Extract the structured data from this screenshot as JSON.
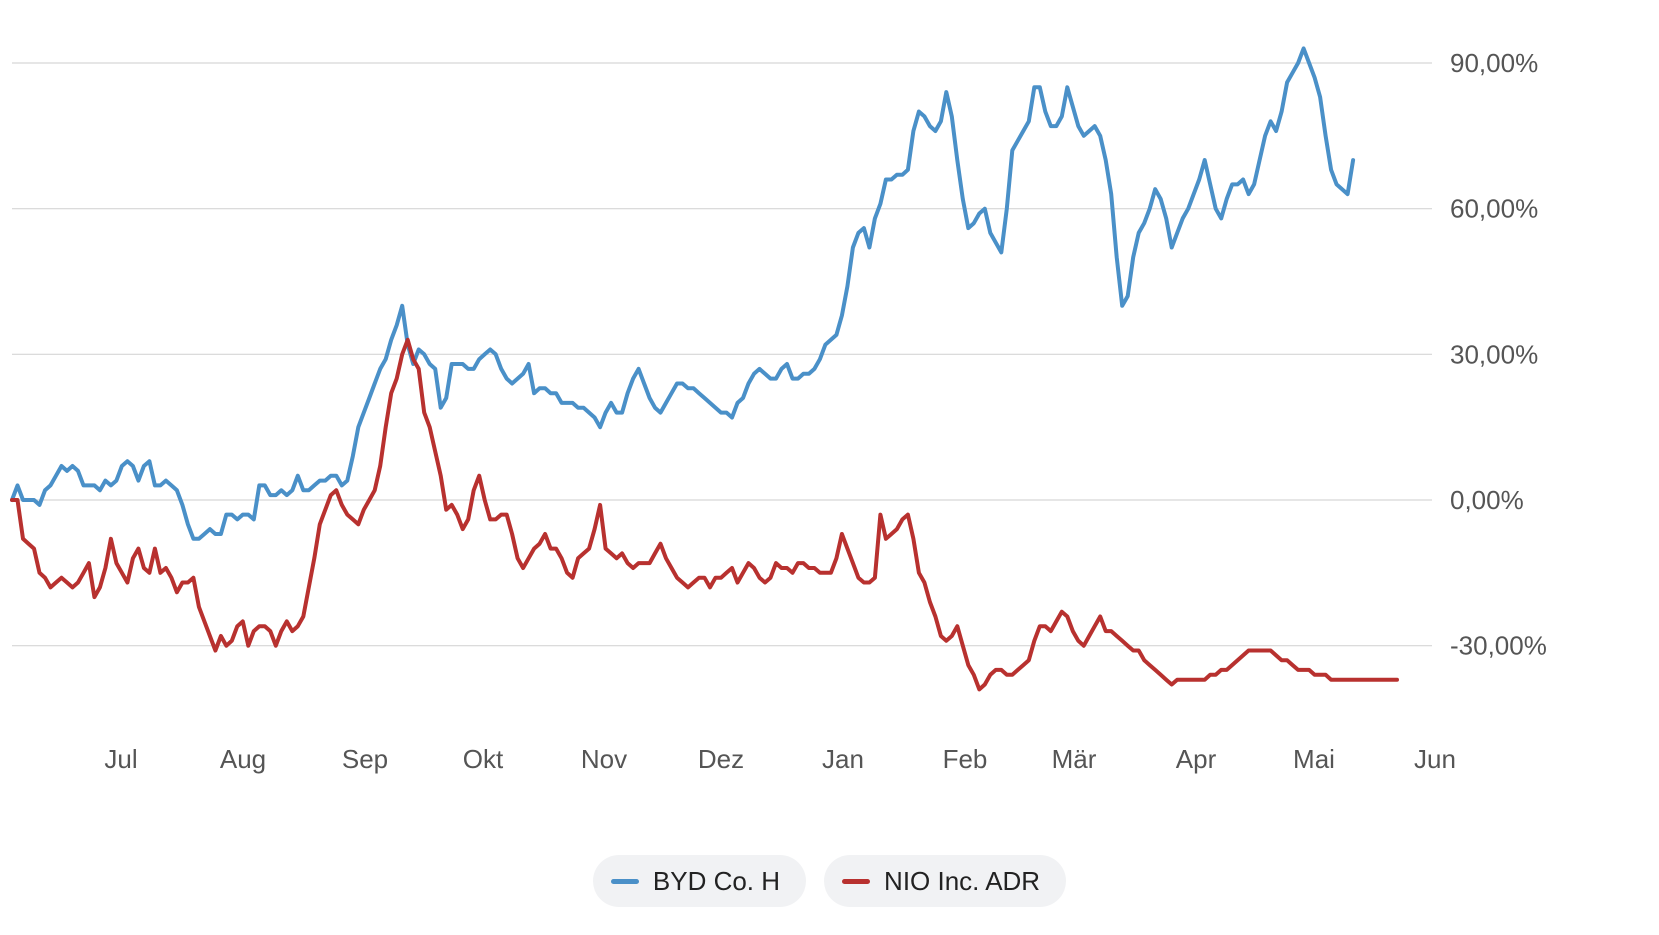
{
  "chart_data": {
    "type": "line",
    "y_axis_position": "right",
    "ylim": [
      -42,
      96
    ],
    "y_ticks": [
      {
        "value": 90,
        "label": "90,00%"
      },
      {
        "value": 60,
        "label": "60,00%"
      },
      {
        "value": 30,
        "label": "30,00%"
      },
      {
        "value": 0,
        "label": "0,00%"
      },
      {
        "value": -30,
        "label": "-30,00%"
      }
    ],
    "x_ticks": [
      {
        "index": 22,
        "label": "Jul"
      },
      {
        "index": 44,
        "label": "Aug"
      },
      {
        "index": 66,
        "label": "Sep"
      },
      {
        "index": 88,
        "label": "Okt"
      },
      {
        "index": 110,
        "label": "Nov"
      },
      {
        "index": 132,
        "label": "Dez"
      },
      {
        "index": 154,
        "label": "Jan"
      },
      {
        "index": 176,
        "label": "Feb"
      },
      {
        "index": 198,
        "label": "Mär"
      },
      {
        "index": 220,
        "label": "Apr"
      },
      {
        "index": 242,
        "label": "Mai"
      },
      {
        "index": 264,
        "label": "Jun"
      }
    ],
    "x_count": 261,
    "grid": true,
    "legend_position": "bottom-center",
    "series": [
      {
        "name": "BYD Co. H",
        "color": "#4a90c8",
        "values": [
          0,
          3,
          0,
          0,
          0,
          -1,
          2,
          3,
          5,
          7,
          6,
          7,
          6,
          3,
          3,
          3,
          2,
          4,
          3,
          4,
          7,
          8,
          7,
          4,
          7,
          8,
          3,
          3,
          4,
          3,
          2,
          -1,
          -5,
          -8,
          -8,
          -7,
          -6,
          -7,
          -7,
          -3,
          -3,
          -4,
          -3,
          -3,
          -4,
          3,
          3,
          1,
          1,
          2,
          1,
          2,
          5,
          2,
          2,
          3,
          4,
          4,
          5,
          5,
          3,
          4,
          9,
          15,
          18,
          21,
          24,
          27,
          29,
          33,
          36,
          40,
          32,
          28,
          31,
          30,
          28,
          27,
          19,
          21,
          28,
          28,
          28,
          27,
          27,
          29,
          30,
          31,
          30,
          27,
          25,
          24,
          25,
          26,
          28,
          22,
          23,
          23,
          22,
          22,
          20,
          20,
          20,
          19,
          19,
          18,
          17,
          15,
          18,
          20,
          18,
          18,
          22,
          25,
          27,
          24,
          21,
          19,
          18,
          20,
          22,
          24,
          24,
          23,
          23,
          22,
          21,
          20,
          19,
          18,
          18,
          17,
          20,
          21,
          24,
          26,
          27,
          26,
          25,
          25,
          27,
          28,
          25,
          25,
          26,
          26,
          27,
          29,
          32,
          33,
          34,
          38,
          44,
          52,
          55,
          56,
          52,
          58,
          61,
          66,
          66,
          67,
          67,
          68,
          76,
          80,
          79,
          77,
          76,
          78,
          84,
          79,
          70,
          62,
          56,
          57,
          59,
          60,
          55,
          53,
          51,
          60,
          72,
          74,
          76,
          78,
          85,
          85,
          80,
          77,
          77,
          79,
          85,
          81,
          77,
          75,
          76,
          77,
          75,
          70,
          63,
          50,
          40,
          42,
          50,
          55,
          57,
          60,
          64,
          62,
          58,
          52,
          55,
          58,
          60,
          63,
          66,
          70,
          65,
          60,
          58,
          62,
          65,
          65,
          66,
          63,
          65,
          70,
          75,
          78,
          76,
          80,
          86,
          88,
          90,
          93,
          90,
          87,
          83,
          75,
          68,
          65,
          64,
          63,
          70
        ]
      },
      {
        "name": "NIO Inc. ADR",
        "color": "#b8312f",
        "values": [
          0,
          0,
          -8,
          -9,
          -10,
          -15,
          -16,
          -18,
          -17,
          -16,
          -17,
          -18,
          -17,
          -15,
          -13,
          -20,
          -18,
          -14,
          -8,
          -13,
          -15,
          -17,
          -12,
          -10,
          -14,
          -15,
          -10,
          -15,
          -14,
          -16,
          -19,
          -17,
          -17,
          -16,
          -22,
          -25,
          -28,
          -31,
          -28,
          -30,
          -29,
          -26,
          -25,
          -30,
          -27,
          -26,
          -26,
          -27,
          -30,
          -27,
          -25,
          -27,
          -26,
          -24,
          -18,
          -12,
          -5,
          -2,
          1,
          2,
          -1,
          -3,
          -4,
          -5,
          -2,
          0,
          2,
          7,
          15,
          22,
          25,
          30,
          33,
          29,
          27,
          18,
          15,
          10,
          5,
          -2,
          -1,
          -3,
          -6,
          -4,
          2,
          5,
          0,
          -4,
          -4,
          -3,
          -3,
          -7,
          -12,
          -14,
          -12,
          -10,
          -9,
          -7,
          -10,
          -10,
          -12,
          -15,
          -16,
          -12,
          -11,
          -10,
          -6,
          -1,
          -10,
          -11,
          -12,
          -11,
          -13,
          -14,
          -13,
          -13,
          -13,
          -11,
          -9,
          -12,
          -14,
          -16,
          -17,
          -18,
          -17,
          -16,
          -16,
          -18,
          -16,
          -16,
          -15,
          -14,
          -17,
          -15,
          -13,
          -14,
          -16,
          -17,
          -16,
          -13,
          -14,
          -14,
          -15,
          -13,
          -13,
          -14,
          -14,
          -15,
          -15,
          -15,
          -12,
          -7,
          -10,
          -13,
          -16,
          -17,
          -17,
          -16,
          -3,
          -8,
          -7,
          -6,
          -4,
          -3,
          -8,
          -15,
          -17,
          -21,
          -24,
          -28,
          -29,
          -28,
          -26,
          -30,
          -34,
          -36,
          -39,
          -38,
          -36,
          -35,
          -35,
          -36,
          -36,
          -35,
          -34,
          -33,
          -29,
          -26,
          -26,
          -27,
          -25,
          -23,
          -24,
          -27,
          -29,
          -30,
          -28,
          -26,
          -24,
          -27,
          -27,
          -28,
          -29,
          -30,
          -31,
          -31,
          -33,
          -34,
          -35,
          -36,
          -37,
          -38,
          -37,
          -37,
          -37,
          -37,
          -37,
          -37,
          -36,
          -36,
          -35,
          -35,
          -34,
          -33,
          -32,
          -31,
          -31,
          -31,
          -31,
          -31,
          -32,
          -33,
          -33,
          -34,
          -35,
          -35,
          -35,
          -36,
          -36,
          -36,
          -37,
          -37,
          -37,
          -37,
          -37,
          -37,
          -37,
          -37,
          -37,
          -37,
          -37,
          -37,
          -37
        ]
      }
    ]
  },
  "legend": {
    "items": [
      {
        "label": "BYD Co. H",
        "color": "#4a90c8"
      },
      {
        "label": "NIO Inc. ADR",
        "color": "#b8312f"
      }
    ]
  }
}
